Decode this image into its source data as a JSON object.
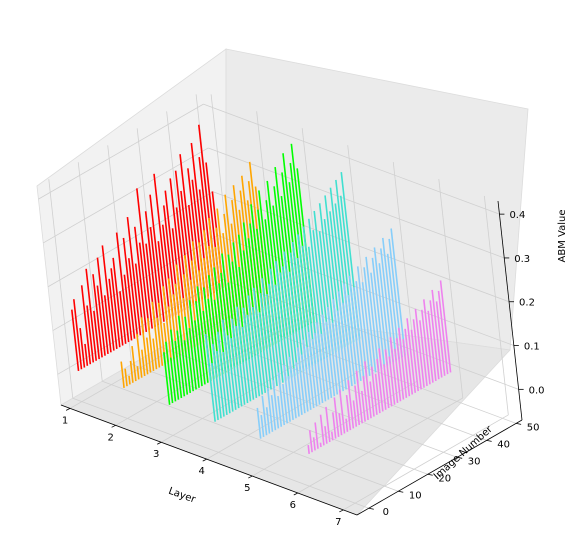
{
  "chart_data": {
    "type": "bar",
    "projection": "3d",
    "xlabel": "Layer",
    "ylabel": "Image Number",
    "zlabel": "ABM Value",
    "x_ticks": [
      "1",
      "2",
      "3",
      "4",
      "5",
      "6",
      "7"
    ],
    "y_ticks": [
      "0",
      "10",
      "20",
      "30",
      "40",
      "50"
    ],
    "z_ticks": [
      "0.0",
      "0.1",
      "0.2",
      "0.3",
      "0.4"
    ],
    "xlim": [
      0.8,
      7.3
    ],
    "ylim": [
      -4,
      52
    ],
    "zlim": [
      -0.07,
      0.43
    ],
    "grid": true,
    "image_numbers": [
      0,
      1,
      2,
      3,
      4,
      5,
      6,
      7,
      8,
      9,
      10,
      11,
      12,
      13,
      14,
      15,
      16,
      17,
      18,
      19,
      20,
      21,
      22,
      23,
      24,
      25,
      26,
      27,
      28,
      29,
      30,
      31,
      32,
      33,
      34,
      35,
      36,
      37,
      38,
      39,
      40,
      41,
      42,
      43,
      44,
      45,
      46,
      47,
      48,
      49
    ],
    "series": [
      {
        "layer": 1,
        "color": "#ff0000",
        "values": [
          0.14,
          0.16,
          0.09,
          0.05,
          0.18,
          0.13,
          0.21,
          0.11,
          0.19,
          0.16,
          0.22,
          0.13,
          0.24,
          0.16,
          0.18,
          0.2,
          0.12,
          0.25,
          0.15,
          0.23,
          0.18,
          0.27,
          0.16,
          0.24,
          0.2,
          0.32,
          0.19,
          0.26,
          0.22,
          0.29,
          0.18,
          0.33,
          0.21,
          0.25,
          0.28,
          0.19,
          0.3,
          0.23,
          0.31,
          0.26,
          0.34,
          0.22,
          0.3,
          0.27,
          0.35,
          0.24,
          0.31,
          0.38,
          0.29,
          0.22
        ]
      },
      {
        "layer": 2,
        "color": "#ffa500",
        "values": [
          0.06,
          0.04,
          0.02,
          0.05,
          0.08,
          0.03,
          0.1,
          0.06,
          0.13,
          0.08,
          0.12,
          0.07,
          0.15,
          0.11,
          0.14,
          0.09,
          0.17,
          0.12,
          0.18,
          0.14,
          0.16,
          0.2,
          0.12,
          0.17,
          0.21,
          0.15,
          0.19,
          0.23,
          0.16,
          0.22,
          0.18,
          0.24,
          0.2,
          0.26,
          0.19,
          0.23,
          0.27,
          0.21,
          0.25,
          0.29,
          0.22,
          0.27,
          0.3,
          0.24,
          0.28,
          0.31,
          0.25,
          0.29,
          0.33,
          0.27
        ]
      },
      {
        "layer": 3,
        "color": "#00ff00",
        "values": [
          0.12,
          0.14,
          0.1,
          0.16,
          0.13,
          0.15,
          0.18,
          0.12,
          0.17,
          0.14,
          0.2,
          0.15,
          0.19,
          0.22,
          0.16,
          0.21,
          0.18,
          0.23,
          0.17,
          0.24,
          0.2,
          0.22,
          0.26,
          0.19,
          0.25,
          0.23,
          0.27,
          0.21,
          0.28,
          0.24,
          0.3,
          0.26,
          0.29,
          0.33,
          0.27,
          0.31,
          0.35,
          0.28,
          0.32,
          0.36,
          0.3,
          0.34,
          0.38,
          0.31,
          0.36,
          0.4,
          0.33,
          0.37,
          0.41,
          0.35
        ]
      },
      {
        "layer": 4,
        "color": "#40e0d0",
        "values": [
          0.2,
          0.13,
          0.17,
          0.15,
          0.19,
          0.14,
          0.21,
          0.17,
          0.16,
          0.2,
          0.18,
          0.22,
          0.17,
          0.21,
          0.19,
          0.23,
          0.2,
          0.24,
          0.18,
          0.22,
          0.25,
          0.21,
          0.23,
          0.26,
          0.22,
          0.27,
          0.24,
          0.25,
          0.28,
          0.23,
          0.27,
          0.29,
          0.25,
          0.3,
          0.27,
          0.31,
          0.26,
          0.32,
          0.29,
          0.33,
          0.28,
          0.34,
          0.3,
          0.35,
          0.31,
          0.36,
          0.32,
          0.37,
          0.33,
          0.38
        ]
      },
      {
        "layer": 5,
        "color": "#87cefa",
        "values": [
          0.07,
          0.05,
          0.09,
          0.06,
          0.1,
          0.08,
          0.11,
          0.07,
          0.12,
          0.09,
          0.13,
          0.1,
          0.14,
          0.11,
          0.12,
          0.15,
          0.13,
          0.16,
          0.14,
          0.17,
          0.15,
          0.16,
          0.18,
          0.15,
          0.19,
          0.17,
          0.2,
          0.16,
          0.21,
          0.18,
          0.22,
          0.19,
          0.23,
          0.2,
          0.24,
          0.21,
          0.22,
          0.25,
          0.21,
          0.24,
          0.26,
          0.22,
          0.25,
          0.27,
          0.23,
          0.26,
          0.28,
          0.24,
          0.27,
          0.29
        ]
      },
      {
        "layer": 6,
        "color": "#ee82ee",
        "values": [
          0.0,
          0.02,
          0.05,
          0.03,
          0.06,
          0.01,
          0.07,
          0.04,
          0.08,
          0.02,
          0.06,
          0.09,
          0.05,
          0.1,
          0.03,
          0.08,
          0.11,
          0.06,
          0.09,
          0.12,
          0.07,
          0.1,
          0.13,
          0.08,
          0.11,
          0.09,
          0.12,
          0.14,
          0.1,
          0.13,
          0.11,
          0.15,
          0.12,
          0.14,
          0.16,
          0.13,
          0.15,
          0.17,
          0.14,
          0.16,
          0.18,
          0.15,
          0.17,
          0.19,
          0.16,
          0.18,
          0.2,
          0.17,
          0.19,
          0.21
        ]
      }
    ]
  }
}
